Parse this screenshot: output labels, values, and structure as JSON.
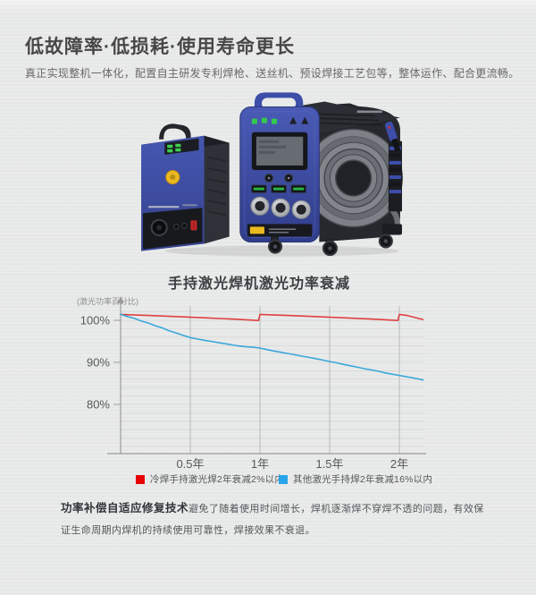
{
  "header": {
    "title": "低故障率·低损耗·使用寿命更长",
    "subtitle": "真正实现整机一体化，配置自主研发专利焊枪、送丝机、预设焊接工艺包等，整体运作、配合更流畅。"
  },
  "product_image": {
    "description": "手持激光冷焊机整机（送丝机 + 主机 + 焊枪 + 线缆）"
  },
  "chart_data": {
    "type": "line",
    "title": "手持激光焊机激光功率衰减",
    "ylabel": "(激光功率百分比)",
    "xlabel": "",
    "x_ticks": [
      "0.5年",
      "1年",
      "1.5年",
      "2年"
    ],
    "x_tick_years": [
      0.5,
      1,
      1.5,
      2
    ],
    "y_ticks": [
      "100%",
      "90%",
      "80%"
    ],
    "y_tick_values": [
      100,
      90,
      80
    ],
    "xlim": [
      0,
      2.2
    ],
    "ylim": [
      68,
      102.5
    ],
    "grid": true,
    "legend_position": "bottom",
    "axis_color": "#9b9b9b",
    "vgrid_color": "#b3b4b5",
    "hgrid_color": "#d6d7d8",
    "series": [
      {
        "name": "冷焊手持激光焊2年衰减2%以内",
        "color": "#e04040",
        "legend_color": "#e60505",
        "points": [
          [
            0,
            101.4
          ],
          [
            0.2,
            101.15
          ],
          [
            0.4,
            100.9
          ],
          [
            0.6,
            100.6
          ],
          [
            0.8,
            100.3
          ],
          [
            0.99,
            99.95
          ],
          [
            1.0,
            101.4
          ],
          [
            1.2,
            101.15
          ],
          [
            1.4,
            100.9
          ],
          [
            1.6,
            100.6
          ],
          [
            1.8,
            100.3
          ],
          [
            1.99,
            99.95
          ],
          [
            2.0,
            101.4
          ],
          [
            2.05,
            101.2
          ],
          [
            2.17,
            100.2
          ]
        ]
      },
      {
        "name": "其他激光手持焊2年衰减16%以内",
        "color": "#39a7db",
        "legend_color": "#27a5e8",
        "points": [
          [
            0,
            101.4
          ],
          [
            0.05,
            100.9
          ],
          [
            0.1,
            100.45
          ],
          [
            0.15,
            99.8
          ],
          [
            0.2,
            99.35
          ],
          [
            0.25,
            98.7
          ],
          [
            0.3,
            98.2
          ],
          [
            0.35,
            97.5
          ],
          [
            0.4,
            96.95
          ],
          [
            0.45,
            96.4
          ],
          [
            0.5,
            95.9
          ],
          [
            0.55,
            95.55
          ],
          [
            0.6,
            95.25
          ],
          [
            0.65,
            95.0
          ],
          [
            0.7,
            94.7
          ],
          [
            0.75,
            94.45
          ],
          [
            0.8,
            94.15
          ],
          [
            0.85,
            93.9
          ],
          [
            0.9,
            93.7
          ],
          [
            0.95,
            93.6
          ],
          [
            1.0,
            93.4
          ],
          [
            1.05,
            93.05
          ],
          [
            1.1,
            92.7
          ],
          [
            1.15,
            92.4
          ],
          [
            1.2,
            92.1
          ],
          [
            1.25,
            91.8
          ],
          [
            1.3,
            91.5
          ],
          [
            1.35,
            91.2
          ],
          [
            1.4,
            90.9
          ],
          [
            1.45,
            90.55
          ],
          [
            1.5,
            90.2
          ],
          [
            1.55,
            89.9
          ],
          [
            1.6,
            89.5
          ],
          [
            1.65,
            89.2
          ],
          [
            1.7,
            88.85
          ],
          [
            1.75,
            88.5
          ],
          [
            1.8,
            88.2
          ],
          [
            1.85,
            87.9
          ],
          [
            1.9,
            87.5
          ],
          [
            1.95,
            87.2
          ],
          [
            2.0,
            86.9
          ],
          [
            2.05,
            86.6
          ],
          [
            2.1,
            86.3
          ],
          [
            2.17,
            85.8
          ]
        ]
      }
    ]
  },
  "footer_note": {
    "bold": "功率补偿自适应修复技术",
    "text": "避免了随着使用时间增长，焊机逐渐焊不穿焊不透的问题，有效保证生命周期内焊机的持续使用可靠性，焊接效果不衰退。"
  },
  "theme": {
    "background": "#e8e9e9",
    "title_color": "#474747",
    "subtitle_color": "#69696b",
    "machine_blue": "#3d4ea9",
    "machine_black": "#26282e",
    "logo_yellow": "#e9b91f"
  }
}
